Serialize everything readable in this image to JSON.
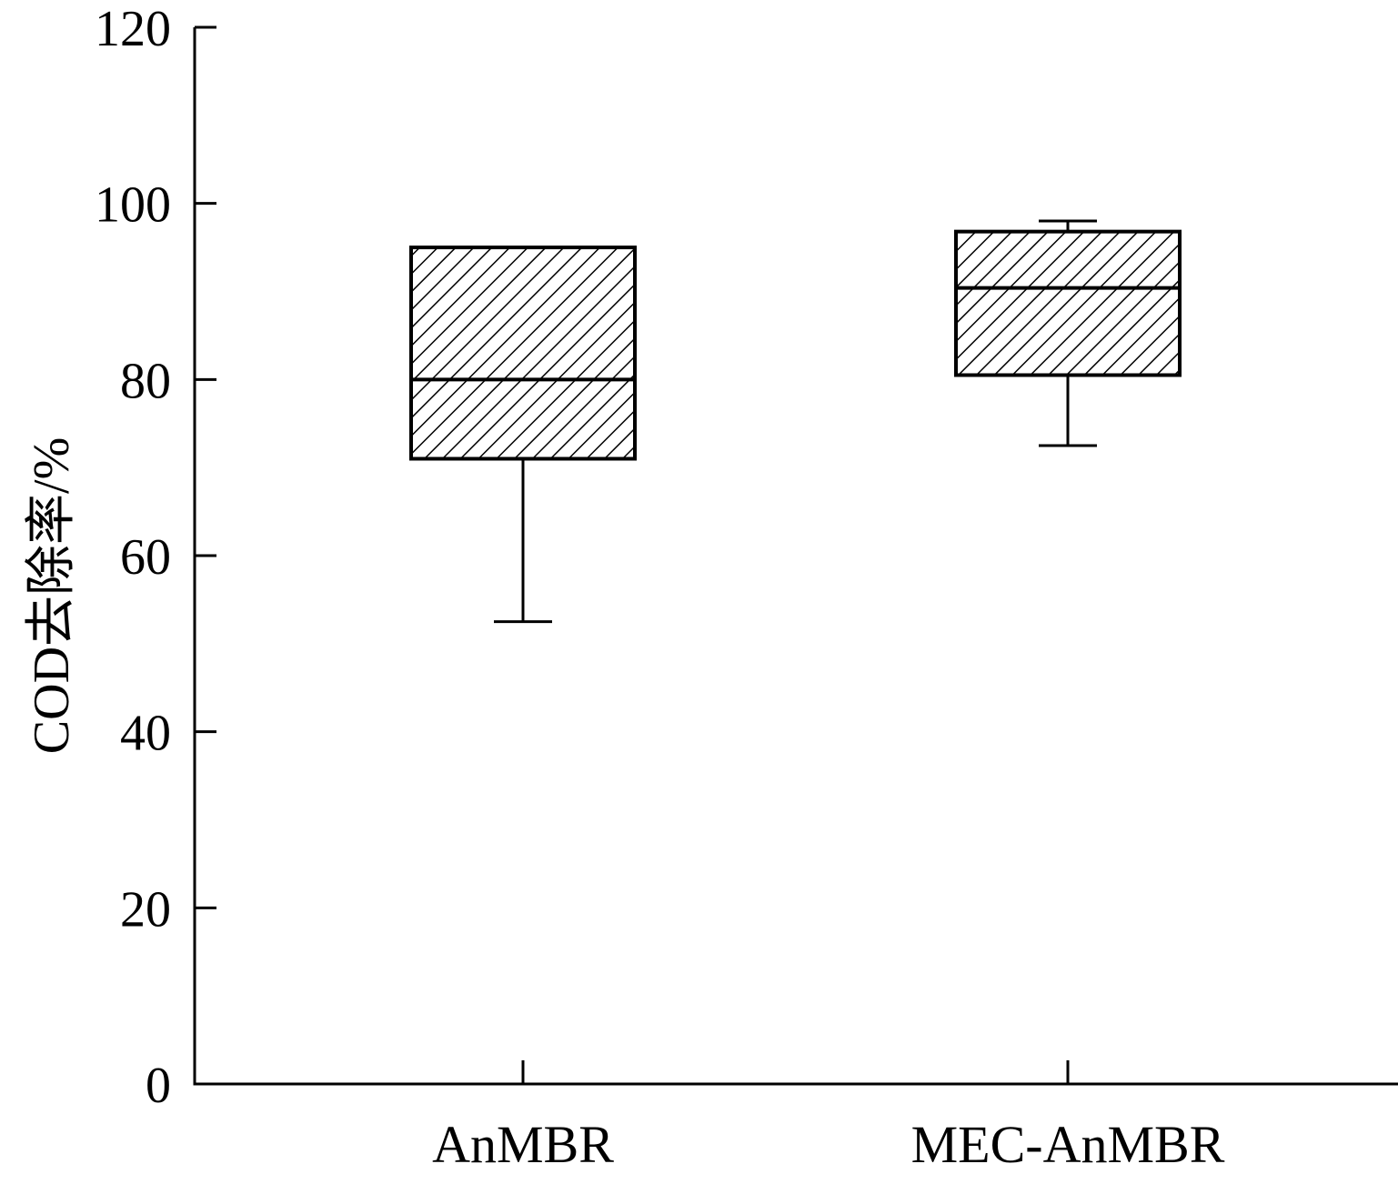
{
  "chart_data": {
    "type": "box",
    "title": "",
    "xlabel": "",
    "ylabel": "COD去除率/%",
    "ylim": [
      0,
      120
    ],
    "yticks": [
      "0",
      "20",
      "40",
      "60",
      "80",
      "100",
      "120"
    ],
    "categories": [
      "AnMBR",
      "MEC-AnMBR"
    ],
    "boxes": [
      {
        "category": "AnMBR",
        "whisker_low": 52.5,
        "q1": 71,
        "median": 80,
        "q3": 95,
        "whisker_high": 95
      },
      {
        "category": "MEC-AnMBR",
        "whisker_low": 72.5,
        "q1": 80.5,
        "median": 90.4,
        "q3": 96.8,
        "whisker_high": 98
      }
    ],
    "fill_pattern": "diagonal-hatch",
    "grid": false,
    "legend": "none"
  }
}
